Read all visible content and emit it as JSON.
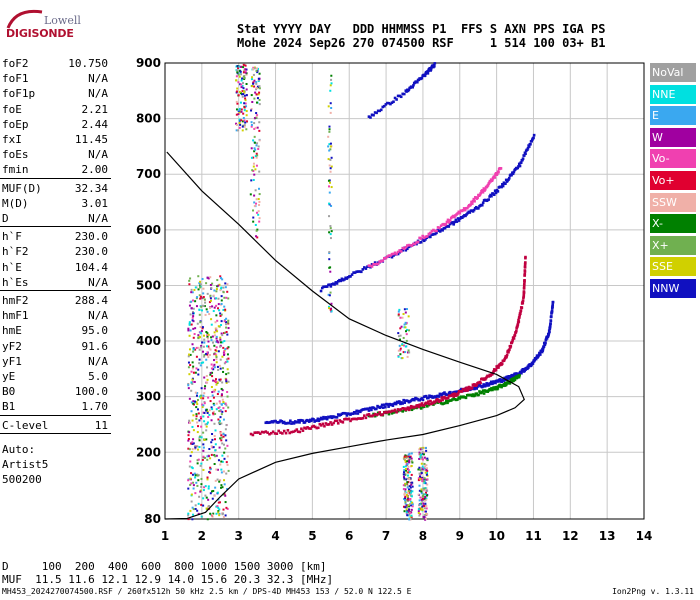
{
  "logo": {
    "line1": "Lowell",
    "line2": "DIGISONDE"
  },
  "header": {
    "labels": "Stat YYYY DAY   DDD HHMMSS P1  FFS S AXN PPS IGA PS",
    "values": "Mohe 2024 Sep26 270 074500 RSF     1 514 100 03+ B1"
  },
  "params_group1": [
    {
      "label": "foF2",
      "value": "10.750"
    },
    {
      "label": "foF1",
      "value": "N/A"
    },
    {
      "label": "foF1p",
      "value": "N/A"
    },
    {
      "label": "foE",
      "value": "2.21"
    },
    {
      "label": "foEp",
      "value": "2.44"
    },
    {
      "label": "fxI",
      "value": "11.45"
    },
    {
      "label": "foEs",
      "value": "N/A"
    },
    {
      "label": "fmin",
      "value": "2.00"
    }
  ],
  "params_group2": [
    {
      "label": "MUF(D)",
      "value": "32.34"
    },
    {
      "label": "M(D)",
      "value": "3.01"
    },
    {
      "label": "D",
      "value": "N/A"
    }
  ],
  "params_group3": [
    {
      "label": "h`F",
      "value": "230.0"
    },
    {
      "label": "h`F2",
      "value": "230.0"
    },
    {
      "label": "h`E",
      "value": "104.4"
    },
    {
      "label": "h`Es",
      "value": "N/A"
    }
  ],
  "params_group4": [
    {
      "label": "hmF2",
      "value": "288.4"
    },
    {
      "label": "hmF1",
      "value": "N/A"
    },
    {
      "label": "hmE",
      "value": "95.0"
    },
    {
      "label": "yF2",
      "value": "91.6"
    },
    {
      "label": "yF1",
      "value": "N/A"
    },
    {
      "label": "yE",
      "value": "5.0"
    },
    {
      "label": "B0",
      "value": "100.0"
    },
    {
      "label": "B1",
      "value": "1.70"
    }
  ],
  "params_group5": [
    {
      "label": "C-level",
      "value": "11"
    }
  ],
  "auto": {
    "line1": "Auto:",
    "line2": "Artist5",
    "line3": "500200"
  },
  "legend": [
    {
      "name": "NoVal",
      "color": "#a0a0a0"
    },
    {
      "name": "NNE",
      "color": "#00e0e0"
    },
    {
      "name": "E",
      "color": "#3aa8f0"
    },
    {
      "name": "W",
      "color": "#a000a0"
    },
    {
      "name": "Vo-",
      "color": "#f040b0"
    },
    {
      "name": "Vo+",
      "color": "#e00030"
    },
    {
      "name": "SSW",
      "color": "#f0b0a8"
    },
    {
      "name": "X-",
      "color": "#008000"
    },
    {
      "name": "X+",
      "color": "#70b050"
    },
    {
      "name": "SSE",
      "color": "#d0d000"
    },
    {
      "name": "NNW",
      "color": "#1010c0"
    }
  ],
  "bottom": {
    "line1": "D     100  200  400  600  800 1000 1500 3000 [km]",
    "line2": "MUF  11.5 11.6 12.1 12.9 14.0 15.6 20.3 32.3 [MHz]"
  },
  "footer": {
    "left": "MH453_2024270074500.RSF / 260fx512h 50 kHz 2.5 km / DPS-4D MH453 153 / 52.0 N 122.5 E",
    "right": "Ion2Png v. 1.3.11"
  },
  "chart_data": {
    "type": "scatter",
    "xlim": [
      1,
      14
    ],
    "ylim": [
      80,
      900
    ],
    "xticks": [
      1,
      2,
      3,
      4,
      5,
      6,
      7,
      8,
      9,
      10,
      11,
      12,
      13,
      14
    ],
    "yticks": [
      80,
      200,
      300,
      400,
      500,
      600,
      700,
      800,
      900
    ],
    "series": [
      {
        "color": "#1010c0",
        "x": [
          3.7,
          4.5,
          5.2,
          6.0,
          6.8,
          7.5,
          8.2,
          8.8,
          9.3,
          9.8,
          10.2,
          10.6,
          10.9,
          11.2,
          11.4,
          11.5
        ],
        "y": [
          258,
          256,
          262,
          272,
          284,
          294,
          302,
          310,
          318,
          326,
          334,
          345,
          360,
          385,
          420,
          475
        ]
      },
      {
        "color": "#008000",
        "x": [
          6.5,
          7.5,
          8.5,
          9.3,
          9.9,
          10.3,
          10.6
        ],
        "y": [
          268,
          278,
          292,
          305,
          316,
          328,
          340
        ]
      },
      {
        "color": "#c00040",
        "x": [
          3.3,
          4.5,
          5.5,
          6.5,
          7.5,
          8.2,
          8.8,
          9.3,
          9.8,
          10.2,
          10.5,
          10.7,
          10.75
        ],
        "y": [
          236,
          240,
          255,
          268,
          280,
          292,
          305,
          320,
          342,
          370,
          420,
          480,
          555
        ]
      },
      {
        "color": "#1010c0",
        "x": [
          5.2,
          6.0,
          7.0,
          8.0,
          8.8,
          9.5,
          10.1,
          10.6,
          11.0
        ],
        "y": [
          495,
          520,
          552,
          585,
          615,
          645,
          680,
          720,
          775
        ]
      },
      {
        "color": "#f040b0",
        "x": [
          6.5,
          7.5,
          8.5,
          9.2,
          9.7,
          10.1
        ],
        "y": [
          535,
          570,
          610,
          645,
          680,
          715
        ]
      },
      {
        "color": "#1010c0",
        "x": [
          6.5,
          7.5,
          8.0,
          8.3
        ],
        "y": [
          805,
          850,
          880,
          900
        ]
      }
    ],
    "profile": {
      "x": [
        1.0,
        1.6,
        2.1,
        2.5,
        3.0,
        4.0,
        5.0,
        6.0,
        7.0,
        8.0,
        9.0,
        10.0,
        10.5,
        10.75,
        10.6,
        10.0,
        9.0,
        8.0,
        7.0,
        6.0,
        5.0,
        4.0,
        3.0,
        2.0,
        1.05
      ],
      "y": [
        80,
        81,
        92,
        120,
        152,
        182,
        198,
        210,
        222,
        232,
        248,
        266,
        280,
        295,
        318,
        340,
        362,
        385,
        410,
        440,
        490,
        545,
        610,
        670,
        740
      ]
    },
    "noise": [
      {
        "x": [
          1.6,
          2.7
        ],
        "y": [
          80,
          520
        ],
        "n": 700
      },
      {
        "x": [
          2.9,
          3.2
        ],
        "y": [
          780,
          900
        ],
        "n": 120
      },
      {
        "x": [
          3.3,
          3.55
        ],
        "y": [
          580,
          900
        ],
        "n": 120
      },
      {
        "x": [
          7.45,
          7.7
        ],
        "y": [
          80,
          200
        ],
        "n": 160
      },
      {
        "x": [
          7.85,
          8.1
        ],
        "y": [
          80,
          210
        ],
        "n": 160
      },
      {
        "x": [
          7.3,
          7.6
        ],
        "y": [
          370,
          460
        ],
        "n": 50
      },
      {
        "x": [
          5.4,
          5.5
        ],
        "y": [
          440,
          900
        ],
        "n": 60
      }
    ]
  }
}
